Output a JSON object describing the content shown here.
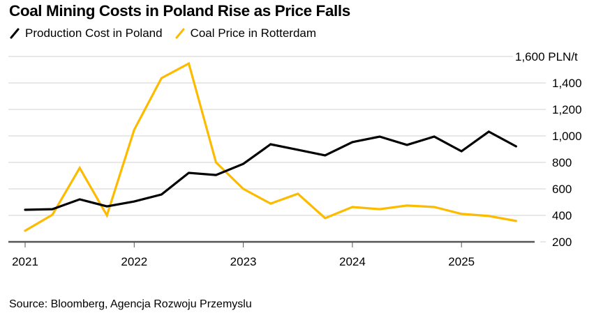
{
  "chart_data": {
    "type": "line",
    "title": "Coal Mining Costs in Poland Rise as Price Falls",
    "xlabel": "",
    "ylabel": "",
    "y_unit": "PLN/t",
    "ylim": [
      200,
      1600
    ],
    "yticks": [
      200,
      400,
      600,
      800,
      1000,
      1200,
      1400,
      1600
    ],
    "ytick_labels": [
      "200",
      "400",
      "600",
      "800",
      "1,000",
      "1,200",
      "1,400",
      "1,600 PLN/t"
    ],
    "xlim": [
      2021.0,
      2025.75
    ],
    "xticks": [
      2021,
      2022,
      2023,
      2024,
      2025
    ],
    "xtick_labels": [
      "2021",
      "2022",
      "2023",
      "2024",
      "2025"
    ],
    "grid": true,
    "y_axis_side": "right",
    "legend_placement": "top-left",
    "x": [
      2021.0,
      2021.25,
      2021.5,
      2021.75,
      2022.0,
      2022.25,
      2022.5,
      2022.75,
      2023.0,
      2023.25,
      2023.5,
      2023.75,
      2024.0,
      2024.25,
      2024.5,
      2024.75,
      2025.0,
      2025.25,
      2025.5
    ],
    "series": [
      {
        "name": "Production Cost in Poland",
        "color": "#000000",
        "values": [
          442,
          447,
          521,
          468,
          505,
          558,
          721,
          705,
          789,
          937,
          895,
          853,
          953,
          995,
          932,
          995,
          884,
          1032,
          921
        ]
      },
      {
        "name": "Coal Price in Rotterdam",
        "color": "#fdbb00",
        "values": [
          284,
          405,
          758,
          400,
          1047,
          1437,
          1547,
          800,
          600,
          489,
          563,
          379,
          463,
          447,
          474,
          463,
          411,
          395,
          358
        ]
      }
    ]
  },
  "source": "Source: Bloomberg, Agencja Rozwoju Przemyslu"
}
